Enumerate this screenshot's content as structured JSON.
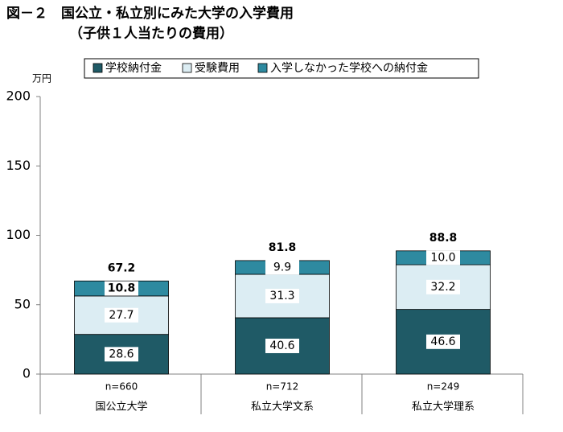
{
  "chart_data": {
    "type": "stacked_bar",
    "title": "図－２　国公立・私立別にみた大学の入学費用",
    "subtitle": "（子供１人当たりの費用）",
    "y_unit": "万円",
    "categories": [
      "国公立大学",
      "私立大学文系",
      "私立大学理系"
    ],
    "sample_sizes": [
      "n=660",
      "n=712",
      "n=249"
    ],
    "series": [
      {
        "name": "学校納付金",
        "color": "#1f5a66",
        "values": [
          28.6,
          40.6,
          46.6
        ]
      },
      {
        "name": "受験費用",
        "color": "#dcedf3",
        "values": [
          27.7,
          31.3,
          32.2
        ]
      },
      {
        "name": "入学しなかった学校への納付金",
        "color": "#2e8aa0",
        "values": [
          10.8,
          9.9,
          10.0
        ],
        "value_labels": [
          "10.8",
          "9.9",
          "10.0"
        ]
      }
    ],
    "totals": [
      67.2,
      81.8,
      88.8
    ],
    "ylim": [
      0,
      200
    ],
    "yticks": [
      0,
      50,
      100,
      150,
      200
    ],
    "grid": false
  }
}
